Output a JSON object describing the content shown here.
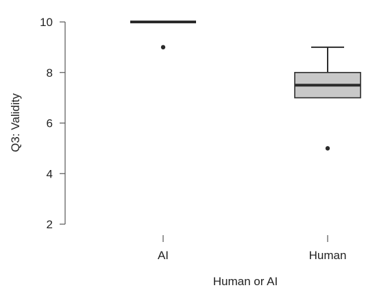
{
  "chart_data": {
    "type": "boxplot",
    "xlabel": "Human or AI",
    "ylabel": "Q3: Validity",
    "categories": [
      "AI",
      "Human"
    ],
    "ylim": [
      2,
      10
    ],
    "yticks": [
      2,
      4,
      6,
      8,
      10
    ],
    "grid": false,
    "legend": "none",
    "boxes": [
      {
        "category": "AI",
        "whisker_low": 10,
        "q1": 10,
        "median": 10,
        "q3": 10,
        "whisker_high": 10,
        "outliers": [
          9
        ]
      },
      {
        "category": "Human",
        "whisker_low": 7,
        "q1": 7,
        "median": 7.5,
        "q3": 8,
        "whisker_high": 9,
        "outliers": [
          5
        ]
      }
    ],
    "colors": {
      "box_fill": "#c8c8c8",
      "line": "#2b2b2b",
      "axis": "#555555"
    }
  }
}
